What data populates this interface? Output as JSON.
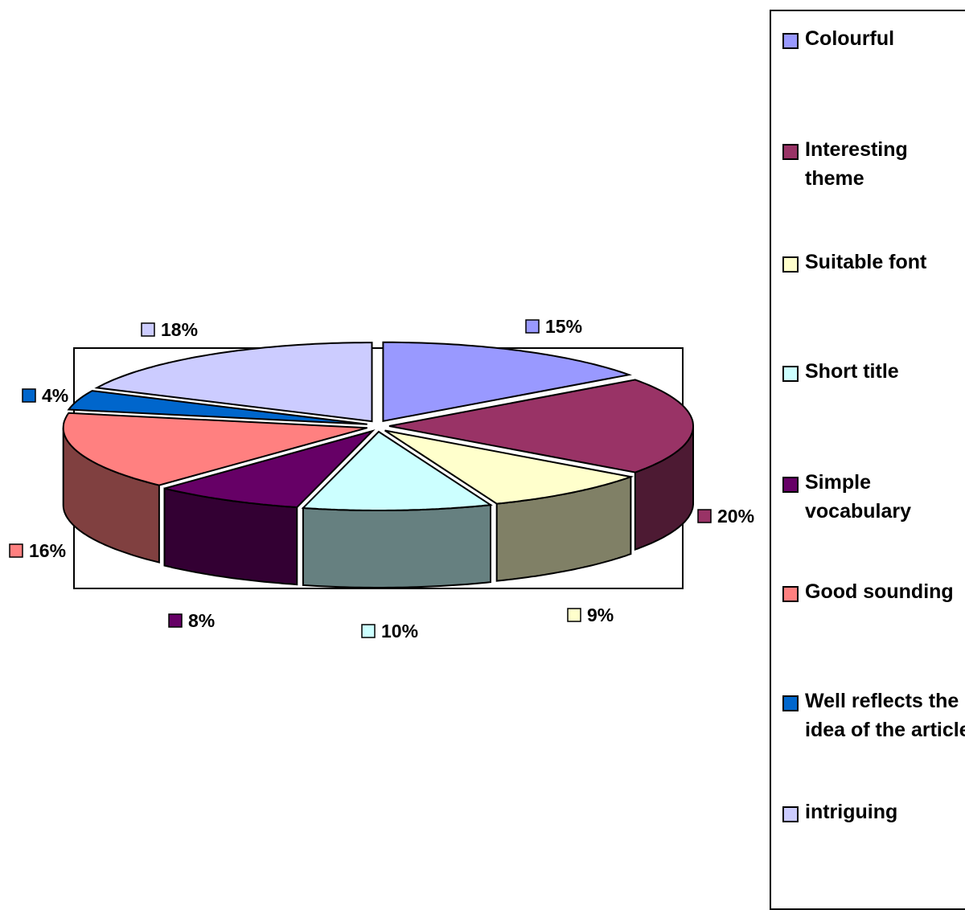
{
  "chart_data": {
    "type": "pie",
    "title": "",
    "three_d": true,
    "legend_position": "right",
    "slices": [
      {
        "name": "Colourful",
        "value": 15,
        "label": "15%",
        "color": "#9999ff",
        "side_color": "#6a6ab3"
      },
      {
        "name": "Interesting theme",
        "value": 20,
        "label": "20%",
        "color": "#993366",
        "side_color": "#4d1a33"
      },
      {
        "name": "Suitable font",
        "value": 9,
        "label": "9%",
        "color": "#ffffcc",
        "side_color": "#808066"
      },
      {
        "name": "Short title",
        "value": 10,
        "label": "10%",
        "color": "#ccffff",
        "side_color": "#668080"
      },
      {
        "name": "Simple vocabulary",
        "value": 8,
        "label": "8%",
        "color": "#660066",
        "side_color": "#330033"
      },
      {
        "name": "Good sounding",
        "value": 16,
        "label": "16%",
        "color": "#ff8080",
        "side_color": "#804040"
      },
      {
        "name": "Well reflects the idea of the article",
        "value": 4,
        "label": "4%",
        "color": "#0066cc",
        "side_color": "#003366"
      },
      {
        "name": "intriguing",
        "value": 18,
        "label": "18%",
        "color": "#ccccff",
        "side_color": "#666680"
      }
    ]
  }
}
